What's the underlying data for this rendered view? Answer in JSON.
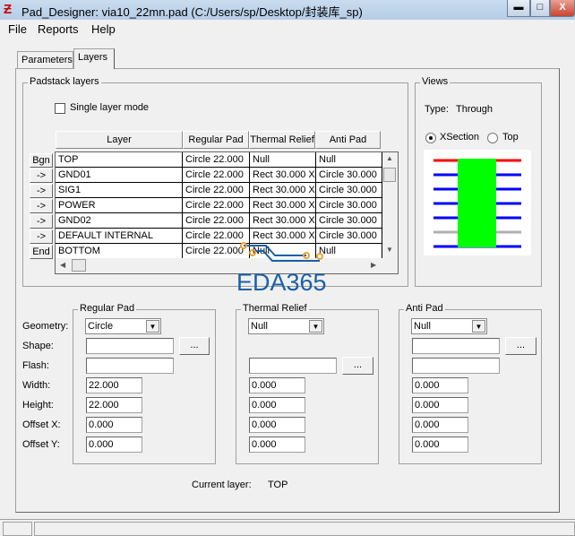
{
  "window": {
    "title": "Pad_Designer: via10_22mn.pad (C:/Users/sp/Desktop/封装库_sp)",
    "minimize": "▬",
    "maximize": "□",
    "close": "X"
  },
  "menu": [
    "File",
    "Reports",
    "Help"
  ],
  "tabs": [
    {
      "label": "Parameters",
      "active": false
    },
    {
      "label": "Layers",
      "active": true
    }
  ],
  "padstack": {
    "group_label": "Padstack layers",
    "single_layer_mode": {
      "label": "Single layer mode",
      "checked": false
    },
    "columns": [
      "Layer",
      "Regular Pad",
      "Thermal Relief",
      "Anti Pad"
    ],
    "row_buttons": [
      "Bgn",
      "->",
      "->",
      "->",
      "->",
      "->",
      "End"
    ],
    "rows": [
      [
        "TOP",
        "Circle 22.000",
        "Null",
        "Null"
      ],
      [
        "GND01",
        "Circle 22.000",
        "Rect 30.000 X",
        "Circle 30.000"
      ],
      [
        "SIG1",
        "Circle 22.000",
        "Rect 30.000 X",
        "Circle 30.000"
      ],
      [
        "POWER",
        "Circle 22.000",
        "Rect 30.000 X",
        "Circle 30.000"
      ],
      [
        "GND02",
        "Circle 22.000",
        "Rect 30.000 X",
        "Circle 30.000"
      ],
      [
        "DEFAULT INTERNAL",
        "Circle 22.000",
        "Rect 30.000 X",
        "Circle 30.000"
      ],
      [
        "BOTTOM",
        "Circle 22.000",
        "Null",
        "Null"
      ]
    ]
  },
  "views": {
    "group_label": "Views",
    "type_label": "Type:",
    "type_value": "Through",
    "xsection": "XSection",
    "top": "Top",
    "selected": "XSection",
    "layer_colors": [
      "#ff0000",
      "#0000ff",
      "#0000ff",
      "#0000ff",
      "#0000ff",
      "#b0b0b0",
      "#0000ff"
    ],
    "drill_color": "#00ff00"
  },
  "form": {
    "labels": [
      "Geometry:",
      "Shape:",
      "Flash:",
      "Width:",
      "Height:",
      "Offset X:",
      "Offset Y:"
    ],
    "regular": {
      "label": "Regular Pad",
      "geometry": "Circle",
      "shape": "",
      "flash": "",
      "width": "22.000",
      "height": "22.000",
      "offset_x": "0.000",
      "offset_y": "0.000"
    },
    "thermal": {
      "label": "Thermal Relief",
      "geometry": "Null",
      "flash": "",
      "width": "0.000",
      "height": "0.000",
      "offset_x": "0.000",
      "offset_y": "0.000"
    },
    "anti": {
      "label": "Anti Pad",
      "geometry": "Null",
      "shape": "",
      "flash": "",
      "width": "0.000",
      "height": "0.000",
      "offset_x": "0.000",
      "offset_y": "0.000"
    },
    "browse": "...",
    "current_layer_label": "Current layer:",
    "current_layer": "TOP"
  },
  "watermark": "EDA365"
}
